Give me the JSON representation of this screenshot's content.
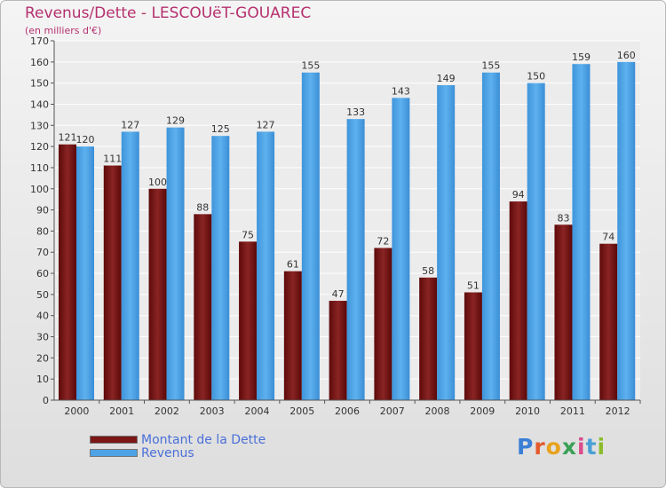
{
  "title": "Revenus/Dette - LESCOUëT-GOUAREC",
  "subtitle": "(en milliers d'€)",
  "logo": {
    "letters": [
      "P",
      "r",
      "o",
      "x",
      "i",
      "t",
      "i"
    ],
    "colors": [
      "#3b7fd6",
      "#e35a2c",
      "#e8a21d",
      "#3aa055",
      "#d94c8b",
      "#4b9fd6",
      "#8bbc2a"
    ]
  },
  "chart_data": {
    "type": "bar",
    "categories": [
      "2000",
      "2001",
      "2002",
      "2003",
      "2004",
      "2005",
      "2006",
      "2007",
      "2008",
      "2009",
      "2010",
      "2011",
      "2012"
    ],
    "series": [
      {
        "name": "Montant de la Dette",
        "color": "#7a1616",
        "values": [
          121,
          111,
          100,
          88,
          75,
          61,
          47,
          72,
          58,
          51,
          94,
          83,
          74
        ]
      },
      {
        "name": "Revenus",
        "color": "#4ea3e6",
        "values": [
          120,
          127,
          129,
          125,
          127,
          155,
          133,
          143,
          149,
          155,
          150,
          159,
          160
        ]
      }
    ],
    "ylim": [
      0,
      170
    ],
    "ytick_step": 10,
    "grid": true,
    "legend": "bottom-left"
  }
}
